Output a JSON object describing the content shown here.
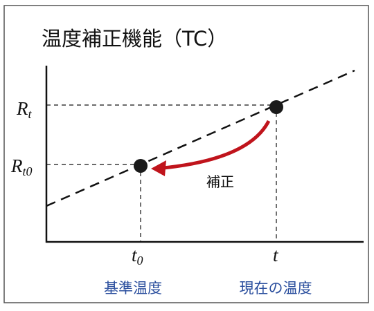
{
  "title": "温度補正機能（TC）",
  "y_labels": [
    {
      "main": "R",
      "sub": "t"
    },
    {
      "main": "R",
      "sub": "t0"
    }
  ],
  "x_labels": [
    {
      "main": "t",
      "sub": "0"
    },
    {
      "main": "t",
      "sub": ""
    }
  ],
  "bottom_labels": [
    "基準温度",
    "現在の温度"
  ],
  "arrow_label": "補正"
}
